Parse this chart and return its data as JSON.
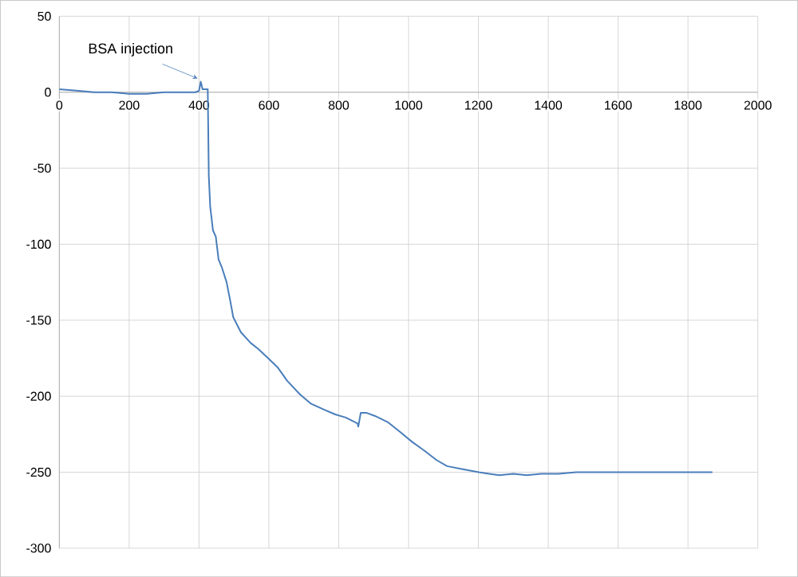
{
  "chart_data": {
    "type": "line",
    "color": "#4a7ebb",
    "x": [
      0,
      50,
      100,
      150,
      200,
      250,
      300,
      350,
      390,
      400,
      405,
      410,
      425,
      428,
      432,
      440,
      448,
      456,
      465,
      479,
      490,
      498,
      520,
      548,
      570,
      598,
      625,
      653,
      690,
      721,
      760,
      790,
      820,
      854,
      856,
      863,
      880,
      904,
      940,
      973,
      1010,
      1046,
      1080,
      1110,
      1155,
      1201,
      1230,
      1260,
      1300,
      1338,
      1380,
      1429,
      1480,
      1540,
      1600,
      1657,
      1720,
      1780,
      1830,
      1870
    ],
    "values": [
      2,
      1,
      0,
      0,
      -1,
      -1,
      0,
      0,
      0,
      1,
      7,
      2,
      2,
      -55,
      -75,
      -91,
      -95,
      -110,
      -115,
      -125,
      -138,
      -148,
      -158,
      -165,
      -169,
      -175,
      -181,
      -190,
      -199,
      -205,
      -209,
      -212,
      -214,
      -218,
      -220,
      -211,
      -211,
      -213,
      -217,
      -223,
      -230,
      -236,
      -242,
      -246,
      -248,
      -250,
      -251,
      -252,
      -251,
      -252,
      -251,
      -251,
      -250,
      -250,
      -250,
      -250,
      -250,
      -250,
      -250,
      -250
    ],
    "xlim": [
      0,
      2000
    ],
    "ylim": [
      -300,
      50
    ],
    "xticks": [
      0,
      200,
      400,
      600,
      800,
      1000,
      1200,
      1400,
      1600,
      1800,
      2000
    ],
    "yticks": [
      -300,
      -250,
      -200,
      -150,
      -100,
      -50,
      0,
      50
    ],
    "grid": true,
    "marker": "none",
    "line_style": "solid",
    "annotations": [
      {
        "text": "BSA injection",
        "x": 405,
        "y": 7
      }
    ]
  }
}
